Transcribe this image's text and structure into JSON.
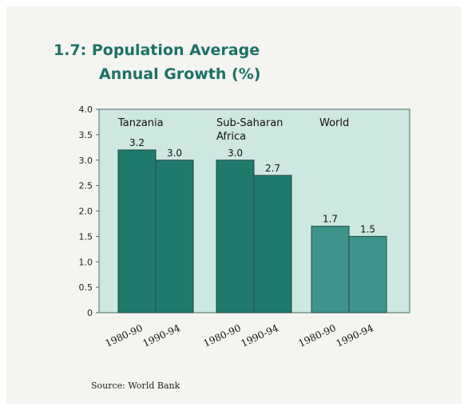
{
  "title_line1": "1.7: Population Average",
  "title_line2": "Annual Growth (%)",
  "source": "Source: World Bank",
  "colors": {
    "plot_bg": "#cfe7e1",
    "plot_border": "#4a6d65",
    "bar_dark": "#1f7a6c",
    "bar_light": "#3e938a",
    "bar_edge": "#1d4a43",
    "title": "#1b7265"
  },
  "chart_data": {
    "type": "bar",
    "groups": [
      "Tanzania",
      "Sub-Saharan Africa",
      "World"
    ],
    "group_label_lines": [
      [
        "Tanzania"
      ],
      [
        "Sub-Saharan",
        "Africa"
      ],
      [
        "World"
      ]
    ],
    "categories": [
      "1980-90",
      "1990-94"
    ],
    "values": [
      [
        3.2,
        3.0
      ],
      [
        3.0,
        2.7
      ],
      [
        1.7,
        1.5
      ]
    ],
    "value_labels": [
      [
        "3.2",
        "3.0"
      ],
      [
        "3.0",
        "2.7"
      ],
      [
        "1.7",
        "1.5"
      ]
    ],
    "y_ticks": [
      "0",
      "0.5",
      "1.0",
      "1.5",
      "2.0",
      "2.5",
      "3.0",
      "3.5",
      "4.0"
    ],
    "ylim": [
      0,
      4.0
    ],
    "title": "1.7: Population Average Annual Growth (%)",
    "xlabel": "",
    "ylabel": ""
  }
}
